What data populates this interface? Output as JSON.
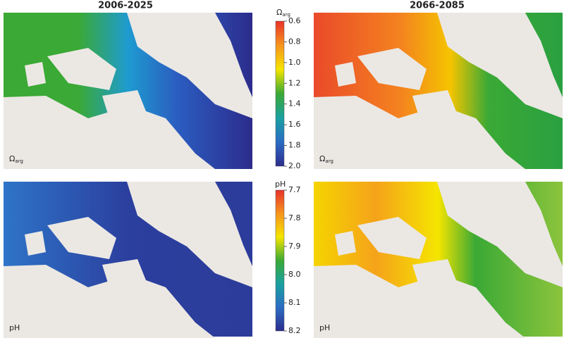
{
  "column_titles": [
    "2006-2025",
    "2066-2085"
  ],
  "rows": [
    {
      "panel_label": {
        "symbol": "Ω",
        "subscript": "arg"
      },
      "colorbar": {
        "title": {
          "symbol": "Ω",
          "subscript": "arg"
        },
        "range": [
          0.6,
          2.0
        ],
        "ticks": [
          0.6,
          0.8,
          {
            "value": 1,
            "label": "1.0"
          },
          1.2,
          1.4,
          1.6,
          1.8,
          {
            "value": 2,
            "label": "2.0"
          }
        ],
        "colors": [
          "#e8322a",
          "#f7941d",
          "#f5e500",
          "#3aa935",
          "#1aa0a0",
          "#2b6cc4",
          "#2c2c8c"
        ]
      }
    },
    {
      "panel_label": "pH",
      "colorbar": {
        "title": "pH",
        "range": [
          7.7,
          8.2
        ],
        "ticks": [
          7.7,
          7.8,
          7.9,
          {
            "value": 8,
            "label": "8.0"
          },
          8.1,
          8.2
        ],
        "colors": [
          "#e8322a",
          "#f7941d",
          "#f5e500",
          "#3aa935",
          "#1aa0a0",
          "#2b6cc4",
          "#2c2c8c"
        ]
      }
    }
  ]
}
